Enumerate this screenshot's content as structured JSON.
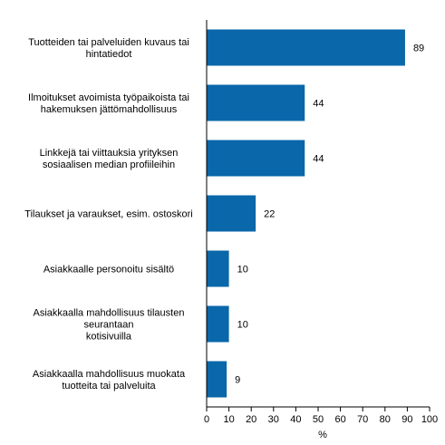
{
  "chart_data": {
    "type": "bar",
    "orientation": "horizontal",
    "categories": [
      "Tuotteiden tai palveluiden kuvaus tai\nhintatiedot",
      "Ilmoitukset avoimista työpaikoista tai\nhakemuksen jättömahdollisuus",
      "Linkkejä tai viittauksia yrityksen\nsosiaalisen median profiileihin",
      "Tilaukset ja varaukset, esim. ostoskori",
      "Asiakkaalle personoitu sisältö",
      "Asiakkaalla mahdollisuus tilausten\nseurantaan\nkotisivuilla",
      "Asiakkaalla mahdollisuus muokata\ntuotteita tai palveluita"
    ],
    "values": [
      89,
      44,
      44,
      22,
      10,
      10,
      9
    ],
    "value_labels": [
      "89",
      "44",
      "44",
      "22",
      "10",
      "10",
      "9"
    ],
    "xlabel": "%",
    "ylabel": "",
    "xlim": [
      0,
      100
    ],
    "xticks": [
      0,
      10,
      20,
      30,
      40,
      50,
      60,
      70,
      80,
      90,
      100
    ],
    "grid": false,
    "legend": "none",
    "bar_color": "#0a67a9"
  }
}
